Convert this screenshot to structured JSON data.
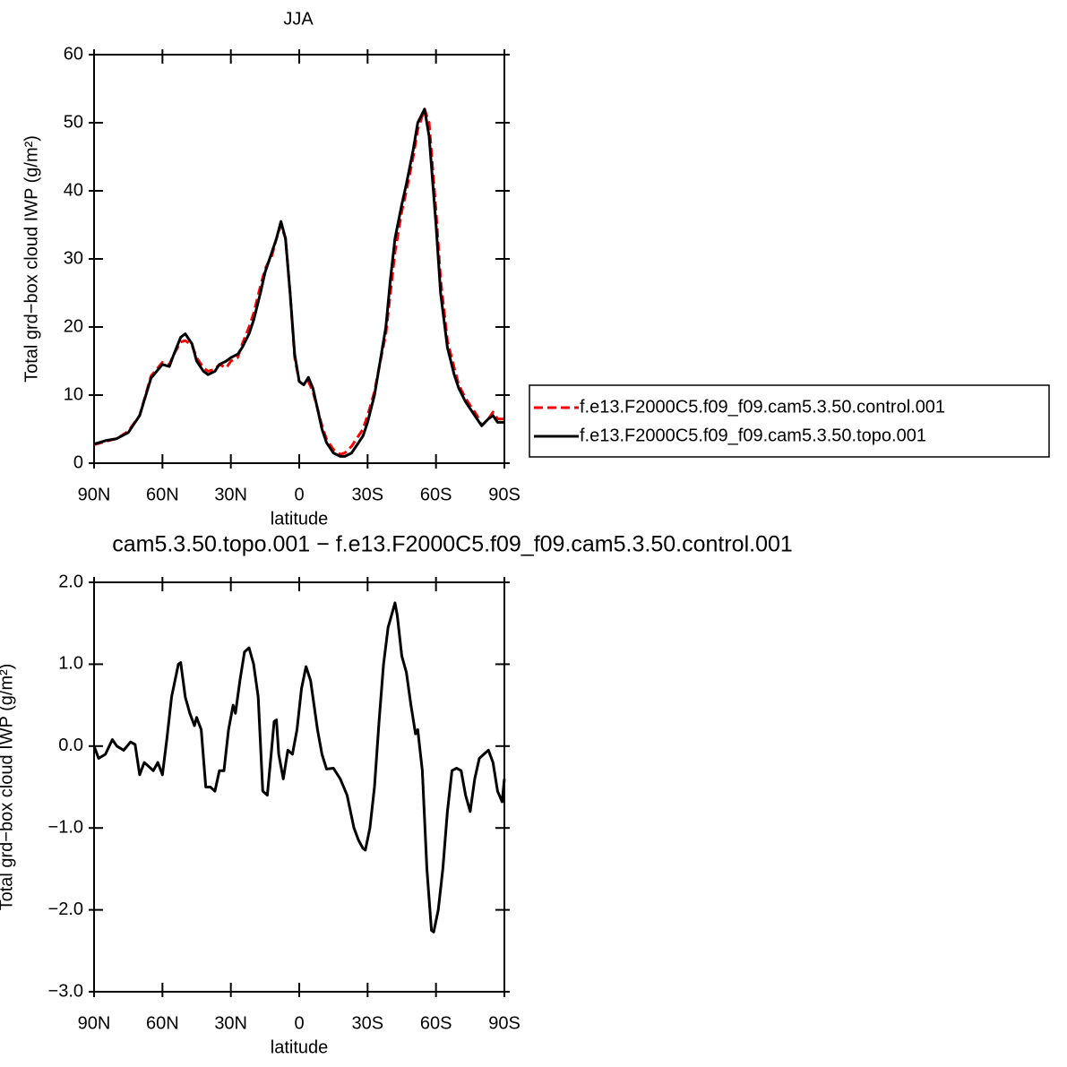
{
  "chart_data": [
    {
      "type": "line",
      "title": "JJA",
      "xlabel": "latitude",
      "ylabel": "Total grd−box cloud IWP (g/m²)",
      "x": [
        90,
        85,
        80,
        75,
        70,
        65,
        60,
        57,
        55,
        52,
        50,
        47,
        45,
        42,
        40,
        37,
        35,
        32,
        30,
        27,
        25,
        22,
        20,
        17,
        15,
        12,
        10,
        8,
        6,
        4,
        2,
        0,
        -2,
        -4,
        -6,
        -8,
        -10,
        -12,
        -15,
        -18,
        -20,
        -23,
        -25,
        -28,
        -30,
        -33,
        -35,
        -38,
        -40,
        -42,
        -45,
        -47,
        -50,
        -52,
        -55,
        -57,
        -60,
        -62,
        -65,
        -68,
        -70,
        -73,
        -75,
        -78,
        -80,
        -83,
        -85,
        -87,
        -90
      ],
      "series": [
        {
          "name": "f.e13.F2000C5.f09_f09.cam5.3.50.control.001",
          "color": "#ff0000",
          "dashed": true,
          "values": [
            2.7,
            3.2,
            3.6,
            4.7,
            7,
            12.8,
            14.8,
            14.5,
            16,
            17.8,
            18,
            17.3,
            15.5,
            14,
            13.5,
            13.8,
            14.5,
            14,
            15,
            15.5,
            17.5,
            20,
            22,
            26,
            28.5,
            30.5,
            33,
            35,
            33,
            25,
            15.5,
            12,
            11.5,
            12,
            10.5,
            8,
            5.5,
            3.5,
            2,
            1.3,
            1.5,
            2.5,
            3.5,
            5,
            7,
            10.5,
            14,
            19,
            25,
            31,
            37,
            40,
            45,
            49,
            52,
            50,
            37,
            27,
            18,
            14,
            11.5,
            9.5,
            8.5,
            7,
            5.5,
            6.5,
            7.5,
            6.5,
            6.5
          ]
        },
        {
          "name": "f.e13.F2000C5.f09_f09.cam5.3.50.topo.001",
          "color": "#000000",
          "dashed": false,
          "values": [
            2.8,
            3.3,
            3.6,
            4.5,
            7,
            12.5,
            14.5,
            14.2,
            16,
            18.5,
            19,
            17.5,
            15,
            13.5,
            13,
            13.5,
            14.5,
            15,
            15.5,
            16,
            17,
            19,
            21,
            25,
            28,
            31,
            33,
            35.5,
            33,
            25,
            16,
            12,
            11.5,
            12.6,
            11,
            8,
            5,
            3,
            1.5,
            1,
            1,
            1.5,
            2.5,
            4,
            6,
            10,
            14,
            20,
            27,
            33,
            38,
            41,
            46,
            50,
            52,
            48,
            35,
            25,
            17,
            13,
            11,
            9,
            8,
            6.5,
            5.5,
            6.5,
            7,
            6,
            6
          ]
        }
      ],
      "xlim": [
        90,
        -90
      ],
      "xticks": [
        {
          "value": 90,
          "label": "90N"
        },
        {
          "value": 60,
          "label": "60N"
        },
        {
          "value": 30,
          "label": "30N"
        },
        0,
        {
          "value": -30,
          "label": "30S"
        },
        {
          "value": -60,
          "label": "60S"
        },
        {
          "value": -90,
          "label": "90S"
        }
      ],
      "ylim": [
        0,
        60
      ],
      "yticks": [
        0,
        10,
        20,
        30,
        40,
        50,
        60
      ],
      "legend": "right"
    },
    {
      "type": "line",
      "title": "cam5.3.50.topo.001 − f.e13.F2000C5.f09_f09.cam5.3.50.control.001",
      "xlabel": "latitude",
      "ylabel": "Total grd−box cloud IWP (g/m²)",
      "x": [
        90,
        88,
        85,
        82,
        80,
        77,
        74,
        72,
        70,
        68,
        66,
        64,
        62,
        60,
        58,
        56,
        53,
        52,
        50,
        48,
        46,
        45,
        43,
        41,
        39,
        37,
        35,
        33,
        31,
        29,
        28,
        26,
        24,
        22,
        20,
        18,
        16,
        14,
        12,
        11,
        10,
        9,
        7,
        5,
        3,
        1,
        -1,
        -3,
        -5,
        -8,
        -10,
        -12,
        -15,
        -18,
        -21,
        -24,
        -26,
        -28,
        -29,
        -31,
        -33,
        -35,
        -37,
        -39,
        -40,
        -42,
        -43,
        -45,
        -47,
        -49,
        -51,
        -52,
        -54,
        -56,
        -58,
        -59,
        -61,
        -63,
        -65,
        -67,
        -69,
        -71,
        -73,
        -75,
        -77,
        -79,
        -81,
        -83,
        -85,
        -87,
        -89,
        -90
      ],
      "values": [
        0,
        -0.15,
        -0.1,
        0.08,
        0,
        -0.05,
        0.05,
        0.02,
        -0.35,
        -0.2,
        -0.25,
        -0.3,
        -0.2,
        -0.35,
        0.1,
        0.6,
        1.0,
        1.02,
        0.6,
        0.4,
        0.25,
        0.35,
        0.2,
        -0.5,
        -0.5,
        -0.55,
        -0.3,
        -0.3,
        0.2,
        0.5,
        0.4,
        0.8,
        1.15,
        1.2,
        1.0,
        0.6,
        -0.55,
        -0.6,
        0,
        0.3,
        0.32,
        -0.1,
        -0.4,
        -0.05,
        -0.1,
        0.2,
        0.7,
        0.97,
        0.8,
        0.2,
        -0.1,
        -0.28,
        -0.27,
        -0.4,
        -0.6,
        -1.0,
        -1.15,
        -1.25,
        -1.27,
        -1.0,
        -0.5,
        0.3,
        1.0,
        1.45,
        1.55,
        1.75,
        1.6,
        1.1,
        0.9,
        0.5,
        0.15,
        0.2,
        -0.3,
        -1.5,
        -2.25,
        -2.27,
        -2.0,
        -1.5,
        -0.8,
        -0.3,
        -0.27,
        -0.3,
        -0.6,
        -0.8,
        -0.4,
        -0.15,
        -0.1,
        -0.05,
        -0.2,
        -0.55,
        -0.68,
        -0.4
      ],
      "color": "#000000",
      "xlim": [
        90,
        -90
      ],
      "xticks": [
        {
          "value": 90,
          "label": "90N"
        },
        {
          "value": 60,
          "label": "60N"
        },
        {
          "value": 30,
          "label": "30N"
        },
        0,
        {
          "value": -30,
          "label": "30S"
        },
        {
          "value": -60,
          "label": "60S"
        },
        {
          "value": -90,
          "label": "90S"
        }
      ],
      "ylim": [
        -3,
        2
      ],
      "yticks": [
        {
          "value": -3,
          "label": "−3.0"
        },
        {
          "value": -2,
          "label": "−2.0"
        },
        {
          "value": -1,
          "label": "−1.0"
        },
        {
          "value": 0,
          "label": "0.0"
        },
        {
          "value": 1,
          "label": "1.0"
        },
        {
          "value": 2,
          "label": "2.0"
        }
      ]
    }
  ]
}
